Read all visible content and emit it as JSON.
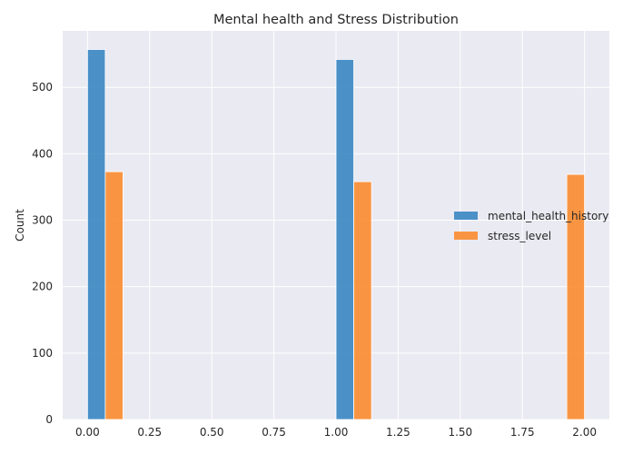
{
  "chart_data": {
    "type": "bar",
    "title": "Mental health and Stress Distribution",
    "xlabel": "",
    "ylabel": "Count",
    "xlim": [
      -0.1,
      2.1
    ],
    "ylim": [
      0,
      585
    ],
    "xticks": [
      "0.00",
      "0.25",
      "0.50",
      "0.75",
      "1.00",
      "1.25",
      "1.50",
      "1.75",
      "2.00"
    ],
    "xtick_values": [
      0,
      0.25,
      0.5,
      0.75,
      1.0,
      1.25,
      1.5,
      1.75,
      2.0
    ],
    "yticks": [
      "0",
      "100",
      "200",
      "300",
      "400",
      "500"
    ],
    "ytick_values": [
      0,
      100,
      200,
      300,
      400,
      500
    ],
    "grid": true,
    "legend_position": "center-right",
    "series": [
      {
        "name": "mental_health_history",
        "color": "#3a87c2",
        "bars": [
          {
            "x0": 0.0,
            "x1": 0.0714,
            "value": 557
          },
          {
            "x0": 1.0,
            "x1": 1.0714,
            "value": 542
          }
        ]
      },
      {
        "name": "stress_level",
        "color": "#fb8c2f",
        "bars": [
          {
            "x0": 0.0714,
            "x1": 0.1429,
            "value": 373
          },
          {
            "x0": 1.0714,
            "x1": 1.1429,
            "value": 358
          },
          {
            "x0": 1.9286,
            "x1": 2.0,
            "value": 369
          }
        ]
      }
    ]
  }
}
